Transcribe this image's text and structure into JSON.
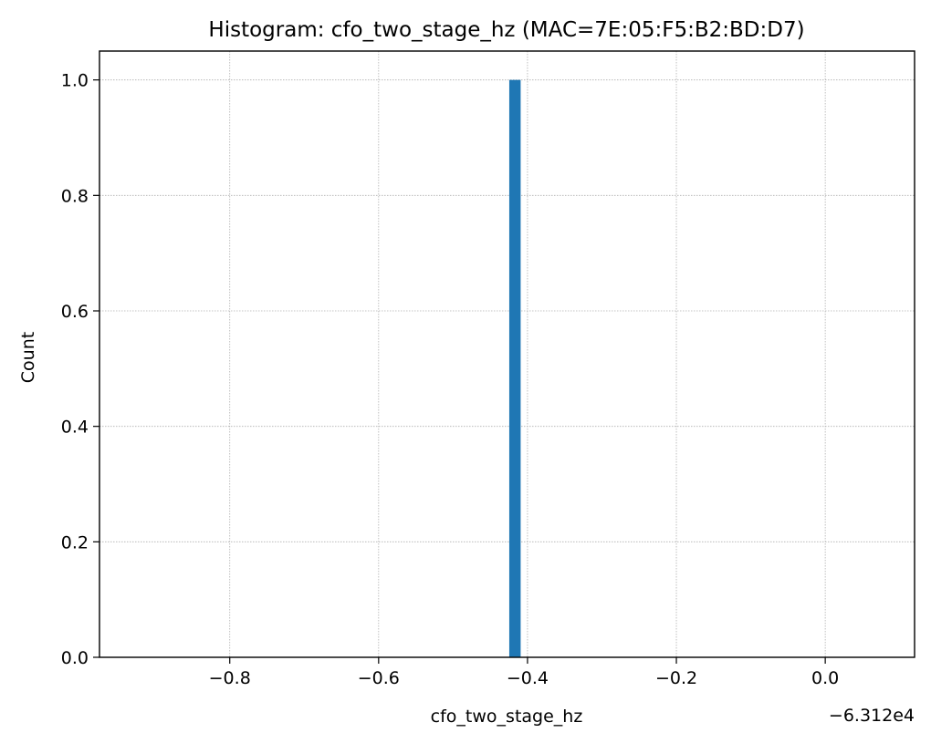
{
  "chart_data": {
    "type": "bar",
    "title": "Histogram: cfo_two_stage_hz (MAC=7E:05:F5:B2:BD:D7)",
    "xlabel": "cfo_two_stage_hz",
    "ylabel": "Count",
    "x_offset_label": "−6.312e4",
    "xlim": [
      -0.975,
      0.12
    ],
    "ylim": [
      0,
      1.05
    ],
    "x_ticks": [
      -0.8,
      -0.6,
      -0.4,
      -0.2,
      0.0
    ],
    "x_tick_labels": [
      "−0.8",
      "−0.6",
      "−0.4",
      "−0.2",
      "0.0"
    ],
    "y_ticks": [
      0.0,
      0.2,
      0.4,
      0.6,
      0.8,
      1.0
    ],
    "y_tick_labels": [
      "0.0",
      "0.2",
      "0.4",
      "0.6",
      "0.8",
      "1.0"
    ],
    "grid": true,
    "bars": [
      {
        "x_start": -0.4245,
        "x_end": -0.4092,
        "count": 1
      }
    ],
    "bar_color": "#1f77b4"
  }
}
